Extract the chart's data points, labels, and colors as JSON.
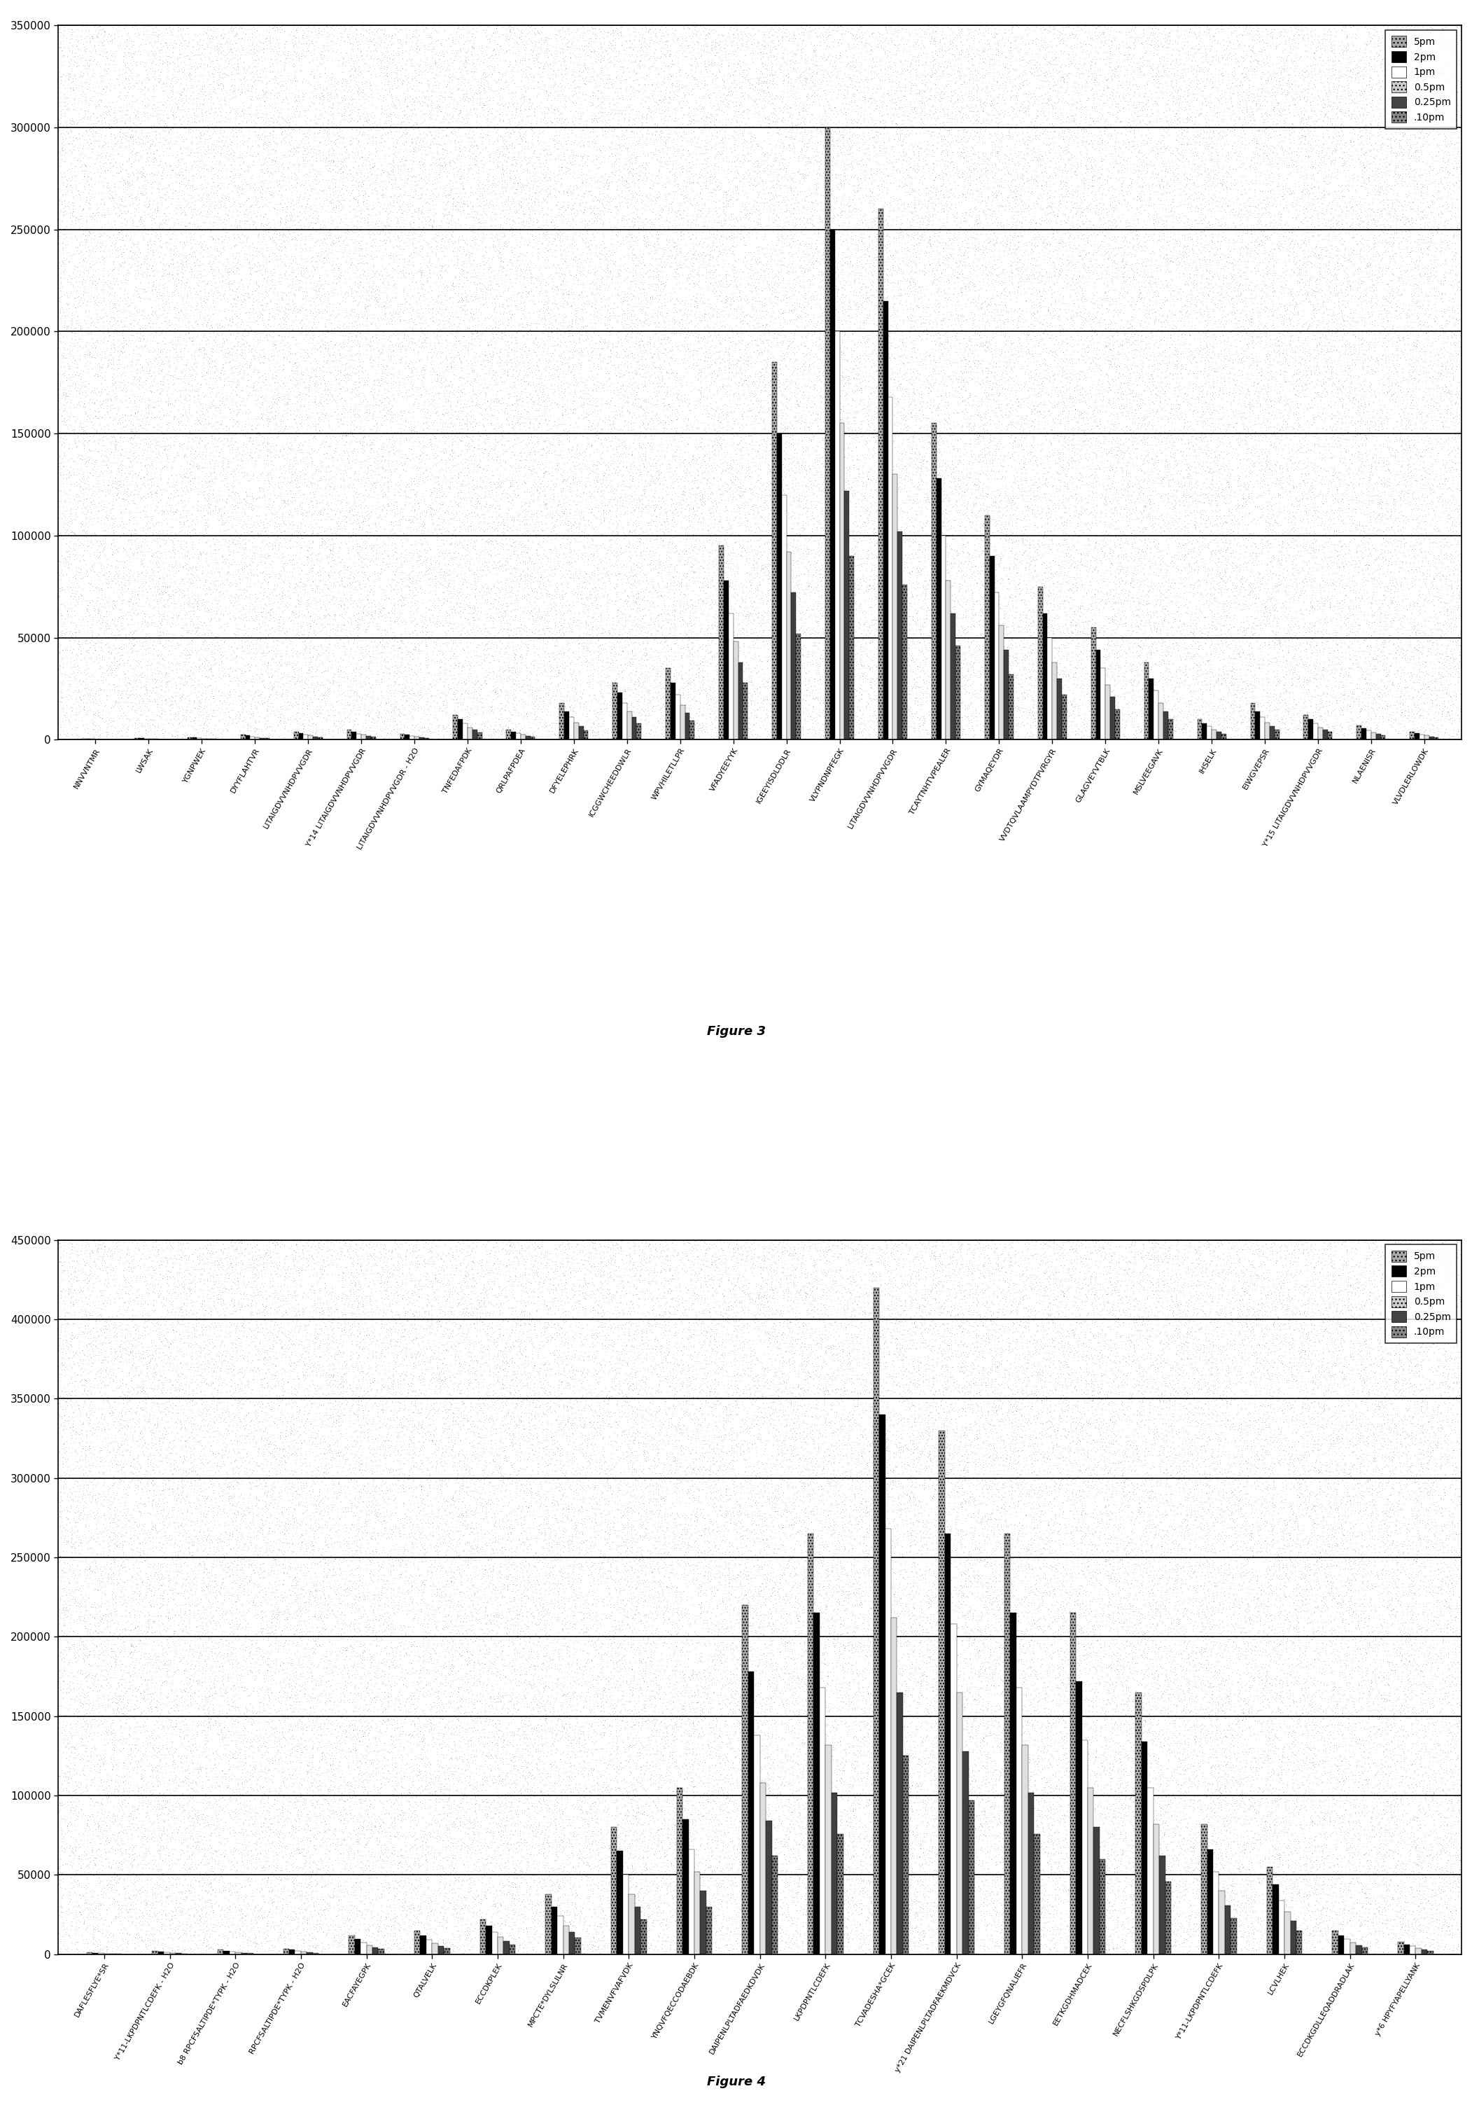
{
  "fig3": {
    "ylim": [
      0,
      350000
    ],
    "yticks": [
      0,
      50000,
      100000,
      150000,
      200000,
      250000,
      300000,
      350000
    ],
    "categories": [
      "NNVVNTMR",
      "LWSAK",
      "YGNPWEK",
      "DYYFLAHTVR",
      "LITAIGDVVNHDPVVGDR",
      "Y*14 LITAIGDVVNHDPVVGDR",
      "LITAIGDVVNHDPVVGDR - H2O",
      "TNFEDAFPDK",
      "QRLPAFPDEA",
      "DFYELEPHRK",
      "ICGGWCHEEDDWLR",
      "WPVHILETLLPR",
      "VFADYEEYYK",
      "IGEEYISDLDDLR",
      "VLYPNDNPFEGK",
      "LITAIGDVVNHDPVVGDR",
      "TCAYTNHTVPEALER",
      "GYMAQEYDR",
      "VVDTQVLAAMPYDTPVRGYR",
      "GLAGVEYVTBLK",
      "MSLVEEGAVK",
      "IHSELK",
      "EIWGVEPSR",
      "Y*15 LITAIGDVVNHDPVVGDR",
      "NLAENISR",
      "VLVDLERLOWDK"
    ],
    "series": {
      "5pm": [
        500,
        900,
        1200,
        2500,
        4000,
        5000,
        3000,
        12000,
        5000,
        18000,
        28000,
        35000,
        95000,
        185000,
        300000,
        260000,
        155000,
        110000,
        75000,
        55000,
        38000,
        10000,
        18000,
        12000,
        7000,
        4000
      ],
      "2pm": [
        400,
        700,
        1000,
        2000,
        3200,
        4000,
        2400,
        10000,
        4000,
        14000,
        23000,
        28000,
        78000,
        150000,
        250000,
        215000,
        128000,
        90000,
        62000,
        44000,
        30000,
        8000,
        14000,
        10000,
        5500,
        3200
      ],
      "1pm": [
        300,
        550,
        800,
        1600,
        2500,
        3000,
        1800,
        8000,
        3200,
        11000,
        18000,
        22000,
        62000,
        120000,
        200000,
        168000,
        100000,
        72000,
        50000,
        35000,
        24000,
        6500,
        11000,
        8000,
        4500,
        2500
      ],
      "0.5pm": [
        250,
        420,
        600,
        1200,
        2000,
        2500,
        1400,
        6000,
        2500,
        8500,
        14000,
        17000,
        48000,
        92000,
        155000,
        130000,
        78000,
        56000,
        38000,
        27000,
        18000,
        5000,
        8500,
        6000,
        3500,
        2000
      ],
      "0.25pm": [
        200,
        320,
        450,
        900,
        1500,
        1900,
        1100,
        5000,
        1900,
        6500,
        11000,
        13000,
        38000,
        72000,
        122000,
        102000,
        62000,
        44000,
        30000,
        21000,
        14000,
        4000,
        6500,
        5000,
        2800,
        1600
      ],
      ".10pm": [
        150,
        220,
        320,
        700,
        1100,
        1400,
        800,
        3600,
        1400,
        4700,
        8000,
        9500,
        28000,
        52000,
        90000,
        76000,
        46000,
        32000,
        22000,
        15000,
        10000,
        3000,
        5000,
        3800,
        2000,
        1200
      ]
    }
  },
  "fig4": {
    "ylim": [
      0,
      450000
    ],
    "yticks": [
      0,
      50000,
      100000,
      150000,
      200000,
      250000,
      300000,
      350000,
      400000,
      450000
    ],
    "categories": [
      "DAFLESFLYE*SR",
      "Y*11-LKPDPNTLCDEFK - H2O",
      "b8 RPCFSALTIPDE*TYPK - H2O",
      "RPCFSALTIPDE*TYPK - H2O",
      "EACFAYEGPK",
      "QTALVELK",
      "ECCDKPLEK",
      "MPCTE*DYLSLILNR",
      "TVMENVFVAFVDK",
      "YNQVFQECCODAEBDK",
      "DAIPENLPLTADFAEDKDVDK",
      "LKPDPNTLCDEFK",
      "TCVADESHA*GCEK",
      "y*21 DAIPENLPLTADFAEKMDVCK",
      "LGEYGFQNALIEFR",
      "EETKGDHMADCEK",
      "NECFLSHKGDSPDLPK",
      "Y*11-LKPDPNTLCDEFK",
      "LCVLHEK",
      "ECCDKGDLLEQADDRADLAK",
      "y*6 HPYFYAPELLYANK"
    ],
    "series": {
      "5pm": [
        1200,
        2000,
        2800,
        3500,
        12000,
        15000,
        22000,
        38000,
        80000,
        105000,
        220000,
        265000,
        420000,
        330000,
        265000,
        215000,
        165000,
        82000,
        55000,
        15000,
        8000
      ],
      "2pm": [
        950,
        1600,
        2200,
        2800,
        9500,
        12000,
        18000,
        30000,
        65000,
        85000,
        178000,
        215000,
        340000,
        265000,
        215000,
        172000,
        134000,
        66000,
        44000,
        12000,
        6000
      ],
      "1pm": [
        750,
        1200,
        1700,
        2100,
        7500,
        9000,
        14000,
        24000,
        50000,
        66000,
        138000,
        168000,
        268000,
        208000,
        168000,
        135000,
        105000,
        52000,
        34000,
        9500,
        5000
      ],
      "0.5pm": [
        580,
        920,
        1300,
        1700,
        5800,
        7000,
        11000,
        18000,
        38000,
        52000,
        108000,
        132000,
        212000,
        165000,
        132000,
        105000,
        82000,
        40000,
        27000,
        7500,
        4000
      ],
      "0.25pm": [
        440,
        700,
        1000,
        1300,
        4500,
        5400,
        8500,
        14000,
        30000,
        40000,
        84000,
        102000,
        165000,
        128000,
        102000,
        80000,
        62000,
        31000,
        21000,
        5800,
        3000
      ],
      ".10pm": [
        320,
        520,
        750,
        1000,
        3300,
        4000,
        6300,
        10500,
        22000,
        30000,
        62000,
        76000,
        125000,
        97000,
        76000,
        60000,
        46000,
        23000,
        15000,
        4200,
        2200
      ]
    }
  },
  "legend_labels": [
    "5pm",
    "2pm",
    "1pm",
    "0.5pm",
    "0.25pm",
    ".10pm"
  ],
  "face_colors": [
    "#aaaaaa",
    "#000000",
    "#ffffff",
    "#dddddd",
    "#333333",
    "#888888"
  ],
  "hatches": [
    "...",
    "",
    "",
    "",
    "",
    "..."
  ],
  "fig3_label": "Figure 3",
  "fig4_label": "Figure 4"
}
